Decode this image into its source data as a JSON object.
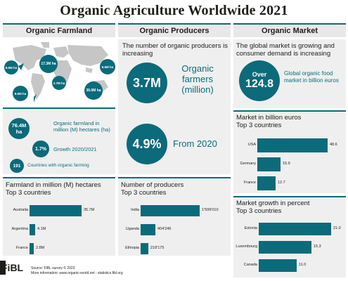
{
  "title": "Organic Agriculture Worldwide 2021",
  "columns": {
    "land": "Organic Farmland",
    "producers": "Organic Producers",
    "market": "Organic Market"
  },
  "colors": {
    "accent": "#0b6b7a",
    "panel": "#efefef",
    "map": "#c6c6c6"
  },
  "land": {
    "map_labels": [
      "8.5M ha",
      "17.3M ha",
      "6.5M ha",
      "9.5M ha",
      "2.7M ha",
      "36.0M ha"
    ],
    "stats": {
      "hectares_value": "76.4M ha",
      "hectares_text": "Organic farmland in million (M) hectares (ha)",
      "growth_value": "1.7%",
      "growth_text": "Growth 2020/2021",
      "countries_value": "191",
      "countries_text": "Countries with organic farming"
    },
    "chart_title": "Farmland in million (M) hectares",
    "chart_subtitle": "Top 3 countries"
  },
  "producers": {
    "intro": "The number of organic producers is increasing",
    "farmers_value": "3.7M",
    "farmers_text": "Organic farmers (million)",
    "growth_value": "4.9%",
    "growth_text": "From 2020",
    "chart_title": "Number of producers",
    "chart_subtitle": "Top 3 countries"
  },
  "market": {
    "intro": "The global market is growing and consumer demand is increasing",
    "over_label": "Over",
    "value": "124.8",
    "value_text": "Global organic food market in billion euros",
    "chart1_title": "Market in billion euros",
    "chart1_subtitle": "Top 3 countries",
    "chart2_title": "Market growth in percent",
    "chart2_subtitle": "Top 3 countries"
  },
  "footer": {
    "logo": "FiBL",
    "source": "Source: FiBL survey © 2023",
    "info": "More information: www.organic-world.net - statistics.fibl.org"
  },
  "chart_data": [
    {
      "type": "bar",
      "title": "Farmland in million (M) hectares",
      "categories": [
        "Australia",
        "Argentina",
        "France"
      ],
      "values": [
        35.7,
        4.1,
        2.8
      ],
      "labels": [
        "35.7M",
        "4.1M",
        "2.8M"
      ],
      "xlim": [
        0,
        35.7
      ]
    },
    {
      "type": "bar",
      "title": "Number of producers",
      "categories": [
        "India",
        "Uganda",
        "Ethiopia"
      ],
      "values": [
        1599010,
        404246,
        218175
      ],
      "labels": [
        "1'599'010",
        "404'246",
        "218'175"
      ],
      "xlim": [
        0,
        1599010
      ]
    },
    {
      "type": "bar",
      "title": "Market in billion euros",
      "categories": [
        "USA",
        "Germany",
        "France"
      ],
      "values": [
        48.6,
        15.9,
        12.7
      ],
      "labels": [
        "48.6",
        "15.9",
        "12.7"
      ],
      "xlim": [
        0,
        48.6
      ]
    },
    {
      "type": "bar",
      "title": "Market growth in percent",
      "categories": [
        "Estonia",
        "Luxembourg",
        "Canada"
      ],
      "values": [
        21.0,
        15.3,
        11.0
      ],
      "labels": [
        "21.0",
        "15.3",
        "11.0"
      ],
      "xlim": [
        0,
        21.0
      ]
    }
  ]
}
